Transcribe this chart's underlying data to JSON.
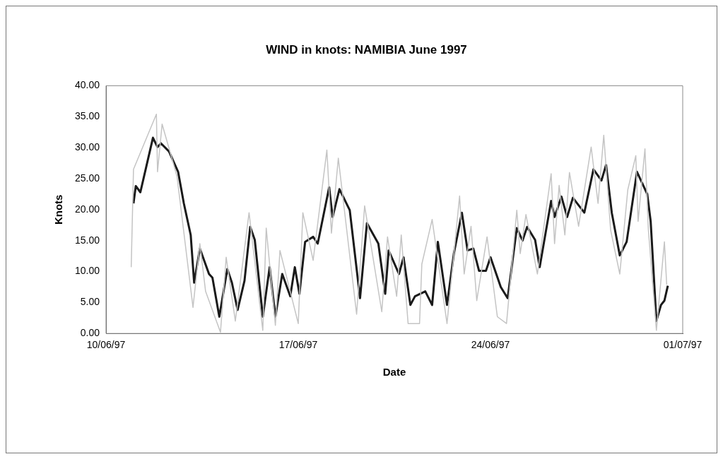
{
  "chart_data": {
    "type": "line",
    "title": "WIND in knots: NAMIBIA June 1997",
    "xlabel": "Date",
    "ylabel": "Knots",
    "xlim": [
      "1997-06-10",
      "1997-07-01"
    ],
    "xticks": [
      {
        "value": "1997-06-10",
        "label": "10/06/97"
      },
      {
        "value": "1997-06-17",
        "label": "17/06/97"
      },
      {
        "value": "1997-06-24",
        "label": "24/06/97"
      },
      {
        "value": "1997-07-01",
        "label": "01/07/97"
      }
    ],
    "ylim": [
      0,
      40
    ],
    "yticks": [
      {
        "value": 0,
        "label": "0.00"
      },
      {
        "value": 5,
        "label": "5.00"
      },
      {
        "value": 10,
        "label": "10.00"
      },
      {
        "value": 15,
        "label": "15.00"
      },
      {
        "value": 20,
        "label": "20.00"
      },
      {
        "value": 25,
        "label": "25.00"
      },
      {
        "value": 30,
        "label": "30.00"
      },
      {
        "value": 35,
        "label": "35.00"
      },
      {
        "value": 40,
        "label": "40.00"
      }
    ],
    "grid": false,
    "legend": false,
    "marker": "none",
    "line_style": "solid",
    "series": [
      {
        "color": "#c4c4c4",
        "x": [
          "1997-06-10T22:00",
          "1997-06-11T00:00",
          "1997-06-11T20:00",
          "1997-06-11T21:00",
          "1997-06-12T01:00",
          "1997-06-12T14:00",
          "1997-06-13T04:00",
          "1997-06-13T10:00",
          "1997-06-13T15:00",
          "1997-06-14T04:00",
          "1997-06-14T09:00",
          "1997-06-14T17:00",
          "1997-06-15T05:00",
          "1997-06-15T17:00",
          "1997-06-15T20:00",
          "1997-06-16T04:00",
          "1997-06-16T08:00",
          "1997-06-17T00:00",
          "1997-06-17T04:00",
          "1997-06-17T13:00",
          "1997-06-18T01:00",
          "1997-06-18T05:00",
          "1997-06-18T11:00",
          "1997-06-19T03:00",
          "1997-06-19T10:00",
          "1997-06-20T01:00",
          "1997-06-20T06:00",
          "1997-06-20T14:00",
          "1997-06-20T18:00",
          "1997-06-21T00:00",
          "1997-06-21T10:00",
          "1997-06-21T12:00",
          "1997-06-21T21:00",
          "1997-06-22T10:00",
          "1997-06-22T21:00",
          "1997-06-23T01:00",
          "1997-06-23T07:00",
          "1997-06-23T12:00",
          "1997-06-23T21:00",
          "1997-06-24T06:00",
          "1997-06-24T14:00",
          "1997-06-24T23:00",
          "1997-06-25T02:00",
          "1997-06-25T07:00",
          "1997-06-25T17:00",
          "1997-06-26T05:00",
          "1997-06-26T08:00",
          "1997-06-26T12:00",
          "1997-06-26T17:00",
          "1997-06-26T21:00",
          "1997-06-27T05:00",
          "1997-06-27T16:00",
          "1997-06-27T22:00",
          "1997-06-28T03:00",
          "1997-06-28T09:00",
          "1997-06-28T17:00",
          "1997-06-29T00:00",
          "1997-06-29T07:00",
          "1997-06-29T09:00",
          "1997-06-29T15:00",
          "1997-06-29T18:00",
          "1997-06-30T01:00",
          "1997-06-30T08:00",
          "1997-06-30T10:00"
        ],
        "values": [
          10.7,
          26.5,
          35.4,
          26.1,
          33.8,
          25.4,
          4.2,
          14.5,
          6.8,
          0.2,
          12.3,
          2.0,
          19.5,
          0.5,
          17.0,
          1.3,
          13.4,
          1.6,
          19.5,
          11.8,
          29.6,
          16.2,
          28.3,
          3.1,
          20.6,
          3.5,
          15.6,
          6.0,
          15.9,
          1.6,
          1.6,
          11.2,
          18.4,
          1.6,
          22.2,
          9.6,
          17.3,
          5.3,
          15.6,
          2.7,
          1.6,
          19.9,
          12.9,
          19.2,
          9.6,
          25.8,
          14.5,
          23.9,
          15.9,
          26.0,
          17.3,
          30.1,
          21.0,
          32.0,
          16.7,
          9.6,
          23.2,
          28.7,
          18.1,
          29.8,
          16.7,
          0.5,
          14.8,
          7.9
        ]
      },
      {
        "color": "#1a1a1a",
        "x": [
          "1997-06-11T00:00",
          "1997-06-11T02:00",
          "1997-06-11T06:00",
          "1997-06-11T17:00",
          "1997-06-11T21:00",
          "1997-06-12T00:00",
          "1997-06-12T07:00",
          "1997-06-12T15:00",
          "1997-06-12T20:00",
          "1997-06-13T02:00",
          "1997-06-13T05:00",
          "1997-06-13T10:00",
          "1997-06-13T18:00",
          "1997-06-13T21:00",
          "1997-06-14T03:00",
          "1997-06-14T10:00",
          "1997-06-14T14:00",
          "1997-06-14T19:00",
          "1997-06-15T01:00",
          "1997-06-15T06:00",
          "1997-06-15T10:00",
          "1997-06-15T17:00",
          "1997-06-15T23:00",
          "1997-06-16T04:00",
          "1997-06-16T10:00",
          "1997-06-16T17:00",
          "1997-06-16T21:00",
          "1997-06-17T01:00",
          "1997-06-17T06:00",
          "1997-06-17T13:00",
          "1997-06-17T17:00",
          "1997-06-18T03:00",
          "1997-06-18T06:00",
          "1997-06-18T12:00",
          "1997-06-18T21:00",
          "1997-06-19T06:00",
          "1997-06-19T12:00",
          "1997-06-19T22:00",
          "1997-06-20T04:00",
          "1997-06-20T07:00",
          "1997-06-20T16:00",
          "1997-06-20T20:00",
          "1997-06-21T02:00",
          "1997-06-21T06:00",
          "1997-06-21T15:00",
          "1997-06-21T21:00",
          "1997-06-22T02:00",
          "1997-06-22T10:00",
          "1997-06-22T16:00",
          "1997-06-22T23:00",
          "1997-06-23T04:00",
          "1997-06-23T09:00",
          "1997-06-23T14:00",
          "1997-06-23T20:00",
          "1997-06-24T00:00",
          "1997-06-24T09:00",
          "1997-06-24T15:00",
          "1997-06-24T23:00",
          "1997-06-25T04:00",
          "1997-06-25T08:00",
          "1997-06-25T15:00",
          "1997-06-25T19:00",
          "1997-06-26T05:00",
          "1997-06-26T08:00",
          "1997-06-26T14:00",
          "1997-06-26T19:00",
          "1997-06-27T00:00",
          "1997-06-27T10:00",
          "1997-06-27T18:00",
          "1997-06-28T01:00",
          "1997-06-28T05:00",
          "1997-06-28T10:00",
          "1997-06-28T17:00",
          "1997-06-28T23:00",
          "1997-06-29T08:00",
          "1997-06-29T17:00",
          "1997-06-29T20:00",
          "1997-06-30T01:00",
          "1997-06-30T05:00",
          "1997-06-30T08:00",
          "1997-06-30T11:00"
        ],
        "values": [
          21.0,
          23.8,
          22.8,
          31.6,
          30.1,
          30.7,
          29.4,
          26.1,
          21.0,
          15.9,
          8.2,
          13.7,
          9.6,
          9.0,
          2.7,
          10.4,
          8.2,
          3.8,
          8.5,
          17.2,
          15.1,
          2.7,
          10.7,
          2.7,
          9.6,
          6.0,
          10.7,
          6.4,
          14.8,
          15.6,
          14.5,
          23.6,
          18.8,
          23.3,
          19.9,
          5.7,
          17.8,
          14.5,
          6.4,
          13.4,
          9.6,
          12.3,
          4.6,
          6.0,
          6.8,
          4.6,
          14.8,
          4.6,
          12.9,
          19.5,
          13.4,
          13.7,
          10.1,
          10.1,
          12.3,
          7.5,
          5.7,
          17.0,
          15.0,
          17.2,
          15.1,
          10.7,
          21.4,
          18.8,
          22.1,
          18.8,
          21.9,
          19.5,
          26.5,
          24.7,
          27.2,
          19.5,
          12.6,
          14.8,
          26.1,
          22.5,
          18.1,
          2.0,
          4.6,
          5.3,
          7.7
        ]
      }
    ]
  }
}
